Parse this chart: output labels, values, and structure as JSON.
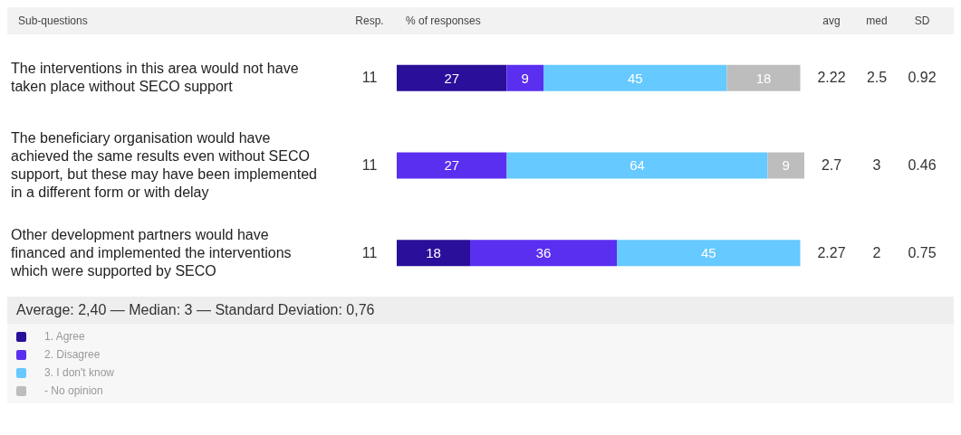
{
  "chart_data": {
    "type": "bar",
    "orientation": "horizontal",
    "stacked": true,
    "data_labels": true,
    "tick_labels": "y",
    "legend": "bottom left",
    "ylabel": "Sub-questions",
    "xlabel": "% of responses",
    "categories": [
      "The interventions in this area would not have taken place without SECO support",
      "The beneficiary organisation would have achieved the same results even without SECO support, but these may have been implemented in a different form or with delay",
      "Other development partners would have financed and implemented the interventions which were supported by SECO"
    ],
    "series": [
      {
        "name": "1. Agree",
        "color": "#2a0f9a",
        "values": [
          27,
          null,
          18
        ]
      },
      {
        "name": "2. Disagree",
        "color": "#5a2ff0",
        "values": [
          9,
          27,
          36
        ]
      },
      {
        "name": "3. I don't know",
        "color": "#66c9ff",
        "values": [
          45,
          64,
          45
        ]
      },
      {
        "name": "- No opinion",
        "color": "#bdbdbd",
        "values": [
          18,
          9,
          null
        ]
      }
    ],
    "annotations": [
      "Resp.",
      "avg",
      "med",
      "SD",
      "11",
      "2.22",
      "2.5",
      "0.92",
      "11",
      "2.7",
      "3",
      "0.46",
      "11",
      "2.27",
      "2",
      "0.75",
      "Average: 2,40 — Median: 3 — Standard Deviation: 0,76"
    ]
  }
}
